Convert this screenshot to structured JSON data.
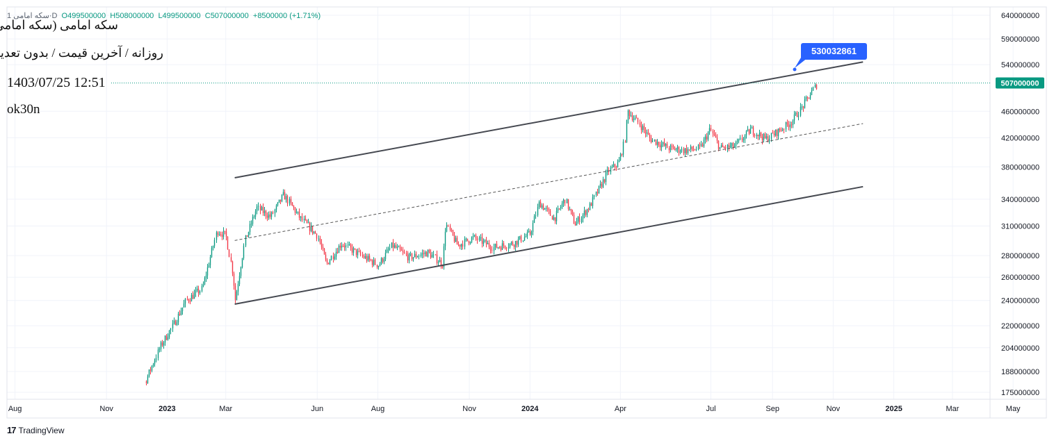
{
  "header": {
    "ohlc": {
      "symbol": "سکه امامی 1",
      "timeframe": "D",
      "open": "O499500000",
      "high": "H508000000",
      "low": "L499500000",
      "close": "C507000000",
      "change": "+8500000 (+1.71%)"
    },
    "title": "سکه امامی (سکه امامی)",
    "subtitle": "روزانه / آخرین قیمت / بدون تعدیل",
    "timestamp": "1403/07/25 12:51",
    "author": "ok30n"
  },
  "footer": {
    "brand": "TradingView"
  },
  "colors": {
    "up": "#089981",
    "down": "#f23645",
    "trendline": "#454850",
    "price_line": "#089981",
    "callout": "#2962ff",
    "grid": "#f0f3fa"
  },
  "chart_data": {
    "type": "candlestick",
    "scale": "log",
    "x_axis_ticks": [
      "Aug",
      "Nov",
      "2023",
      "Mar",
      "Jun",
      "Aug",
      "Nov",
      "2024",
      "Apr",
      "Jul",
      "Sep",
      "Nov",
      "2025",
      "Mar",
      "May"
    ],
    "y_axis_ticks": [
      640000000,
      590000000,
      540000000,
      460000000,
      420000000,
      380000000,
      340000000,
      310000000,
      280000000,
      260000000,
      240000000,
      220000000,
      204000000,
      188000000,
      175000000
    ],
    "y_range": [
      168000000,
      670000000
    ],
    "last_price": 507000000,
    "last_price_label": "507000000",
    "callout_value": "530032861",
    "channel": {
      "upper": [
        [
          "2023-03-10",
          366000000
        ],
        [
          "2024-12-01",
          545000000
        ]
      ],
      "middle": [
        [
          "2023-03-10",
          295000000
        ],
        [
          "2024-12-01",
          441000000
        ]
      ],
      "lower": [
        [
          "2023-03-10",
          237000000
        ],
        [
          "2024-12-01",
          355000000
        ]
      ]
    },
    "price_path": [
      [
        "2022-11-20",
        170000000
      ],
      [
        "2022-12-10",
        182000000
      ],
      [
        "2022-12-25",
        205000000
      ],
      [
        "2023-01-05",
        218000000
      ],
      [
        "2023-01-20",
        240000000
      ],
      [
        "2023-02-05",
        250000000
      ],
      [
        "2023-02-20",
        305000000
      ],
      [
        "2023-03-01",
        300000000
      ],
      [
        "2023-03-08",
        262000000
      ],
      [
        "2023-03-10",
        240000000
      ],
      [
        "2023-03-20",
        295000000
      ],
      [
        "2023-04-01",
        330000000
      ],
      [
        "2023-04-15",
        320000000
      ],
      [
        "2023-04-28",
        345000000
      ],
      [
        "2023-05-15",
        318000000
      ],
      [
        "2023-06-01",
        300000000
      ],
      [
        "2023-06-10",
        272000000
      ],
      [
        "2023-06-25",
        292000000
      ],
      [
        "2023-07-15",
        280000000
      ],
      [
        "2023-08-01",
        271000000
      ],
      [
        "2023-08-15",
        290000000
      ],
      [
        "2023-09-01",
        278000000
      ],
      [
        "2023-09-20",
        283000000
      ],
      [
        "2023-10-05",
        272000000
      ],
      [
        "2023-10-08",
        312000000
      ],
      [
        "2023-10-20",
        290000000
      ],
      [
        "2023-11-05",
        298000000
      ],
      [
        "2023-11-25",
        288000000
      ],
      [
        "2023-12-15",
        292000000
      ],
      [
        "2024-01-01",
        302000000
      ],
      [
        "2024-01-10",
        336000000
      ],
      [
        "2024-01-25",
        318000000
      ],
      [
        "2024-02-05",
        340000000
      ],
      [
        "2024-02-15",
        312000000
      ],
      [
        "2024-03-01",
        332000000
      ],
      [
        "2024-03-10",
        352000000
      ],
      [
        "2024-03-20",
        375000000
      ],
      [
        "2024-03-30",
        385000000
      ],
      [
        "2024-04-05",
        415000000
      ],
      [
        "2024-04-08",
        460000000
      ],
      [
        "2024-04-20",
        440000000
      ],
      [
        "2024-05-01",
        418000000
      ],
      [
        "2024-05-20",
        405000000
      ],
      [
        "2024-06-05",
        402000000
      ],
      [
        "2024-06-20",
        405000000
      ],
      [
        "2024-06-30",
        432000000
      ],
      [
        "2024-07-10",
        405000000
      ],
      [
        "2024-07-25",
        408000000
      ],
      [
        "2024-08-10",
        432000000
      ],
      [
        "2024-08-25",
        418000000
      ],
      [
        "2024-09-05",
        428000000
      ],
      [
        "2024-09-20",
        444000000
      ],
      [
        "2024-10-01",
        468000000
      ],
      [
        "2024-10-16",
        507000000
      ]
    ]
  }
}
